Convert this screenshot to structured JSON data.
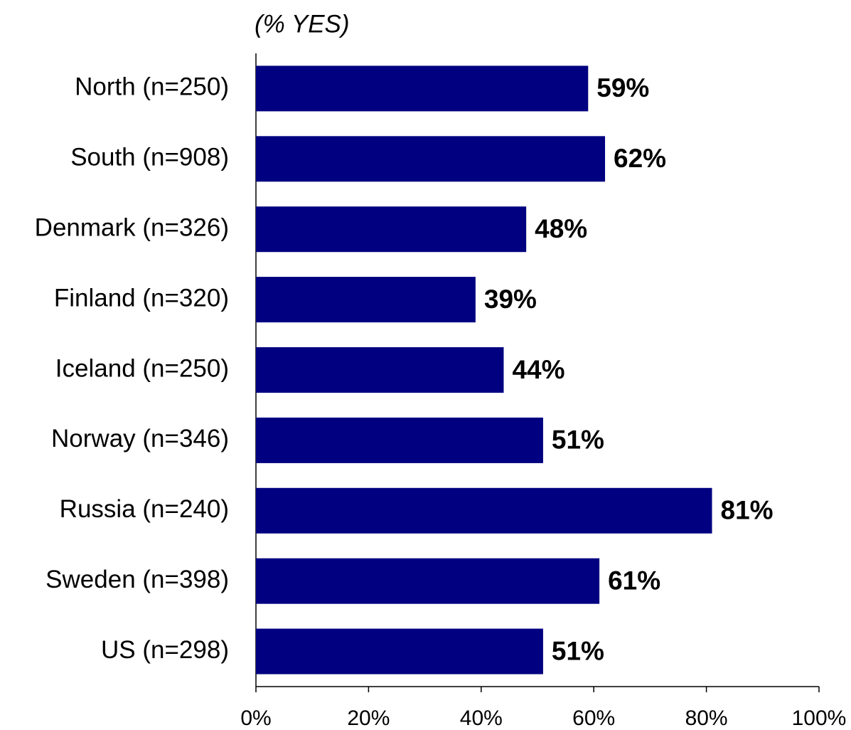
{
  "chart_data": {
    "type": "bar",
    "orientation": "horizontal",
    "subtitle": "(% YES)",
    "categories": [
      "North (n=250)",
      "South (n=908)",
      "Denmark (n=326)",
      "Finland (n=320)",
      "Iceland (n=250)",
      "Norway (n=346)",
      "Russia (n=240)",
      "Sweden (n=398)",
      "US (n=298)"
    ],
    "values": [
      59,
      62,
      48,
      39,
      44,
      51,
      81,
      61,
      51
    ],
    "value_labels": [
      "59%",
      "62%",
      "48%",
      "39%",
      "44%",
      "51%",
      "81%",
      "61%",
      "51%"
    ],
    "color": "#000080",
    "xlim": [
      0,
      100
    ],
    "xticks": [
      {
        "value": 0,
        "label": "0%"
      },
      {
        "value": 20,
        "label": "20%"
      },
      {
        "value": 40,
        "label": "40%"
      },
      {
        "value": 60,
        "label": "60%"
      },
      {
        "value": 80,
        "label": "80%"
      },
      {
        "value": 100,
        "label": "100%"
      }
    ],
    "grid": false
  }
}
